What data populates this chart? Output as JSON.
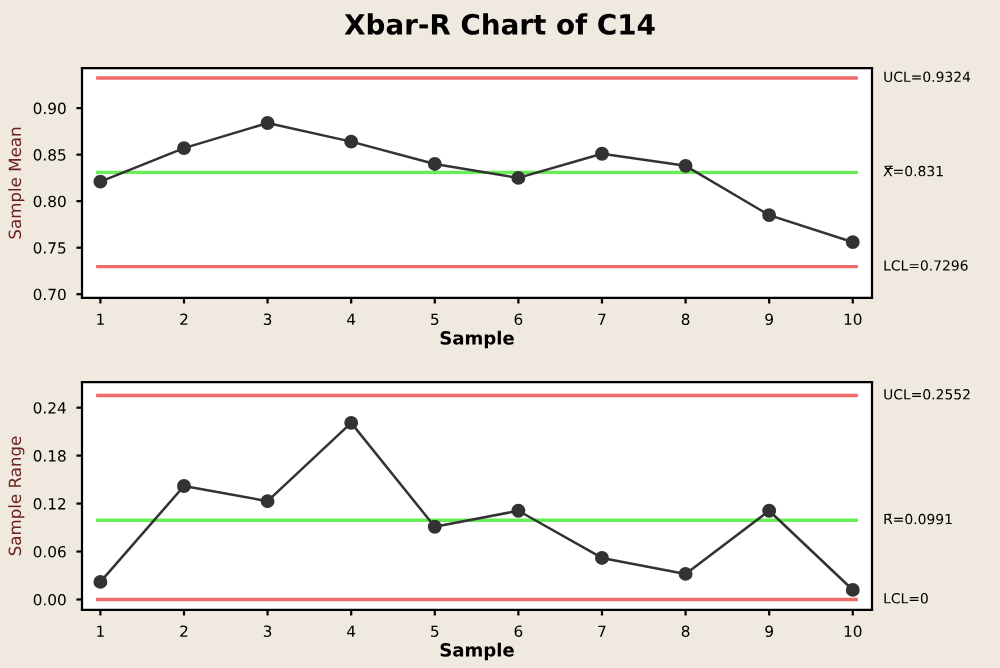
{
  "chart_data": [
    {
      "type": "line",
      "title": "Xbar-R Chart of C14",
      "xlabel": "Sample",
      "ylabel": "Sample Mean",
      "x": [
        1,
        2,
        3,
        4,
        5,
        6,
        7,
        8,
        9,
        10
      ],
      "series": [
        {
          "color": "#333333",
          "values": [
            0.821,
            0.857,
            0.884,
            0.864,
            0.84,
            0.825,
            0.851,
            0.838,
            0.785,
            0.756
          ]
        }
      ],
      "xlim": [
        0.78,
        10.23
      ],
      "xticks": [
        1,
        2,
        3,
        4,
        5,
        6,
        7,
        8,
        9,
        10
      ],
      "ylim": [
        0.696,
        0.943
      ],
      "yticks": [
        {
          "value": 0.7,
          "label": "0.70"
        },
        0.75,
        {
          "value": 0.8,
          "label": "0.80"
        },
        0.85,
        {
          "value": 0.9,
          "label": "0.90"
        }
      ],
      "ref_lines": [
        {
          "axis": "y",
          "value": 0.9324,
          "label": "UCL=0.9324",
          "color": "#f06a6a"
        },
        {
          "axis": "y",
          "value": 0.831,
          "label": "X̿=0.831",
          "color": "#66ee55"
        },
        {
          "axis": "y",
          "value": 0.7296,
          "label": "LCL=0.7296",
          "color": "#f06a6a"
        }
      ],
      "marker": "circle",
      "grid": false,
      "legend": false
    },
    {
      "type": "line",
      "xlabel": "Sample",
      "ylabel": "Sample Range",
      "x": [
        1,
        2,
        3,
        4,
        5,
        6,
        7,
        8,
        9,
        10
      ],
      "series": [
        {
          "color": "#333333",
          "values": [
            0.022,
            0.142,
            0.123,
            0.221,
            0.091,
            0.111,
            0.052,
            0.032,
            0.111,
            0.012
          ]
        }
      ],
      "xlim": [
        0.78,
        10.23
      ],
      "xticks": [
        1,
        2,
        3,
        4,
        5,
        6,
        7,
        8,
        9,
        10
      ],
      "ylim": [
        -0.013,
        0.272
      ],
      "yticks": [
        {
          "value": 0,
          "label": "0.00"
        },
        0.06,
        0.12,
        0.18,
        0.24
      ],
      "ref_lines": [
        {
          "axis": "y",
          "value": 0.2552,
          "label": "UCL=0.2552",
          "color": "#f06a6a"
        },
        {
          "axis": "y",
          "value": 0.0991,
          "label": "R̄=0.0991",
          "color": "#66ee55"
        },
        {
          "axis": "y",
          "value": 0,
          "label": "LCL=0",
          "color": "#f06a6a"
        }
      ],
      "marker": "circle",
      "grid": false,
      "legend": false
    }
  ]
}
